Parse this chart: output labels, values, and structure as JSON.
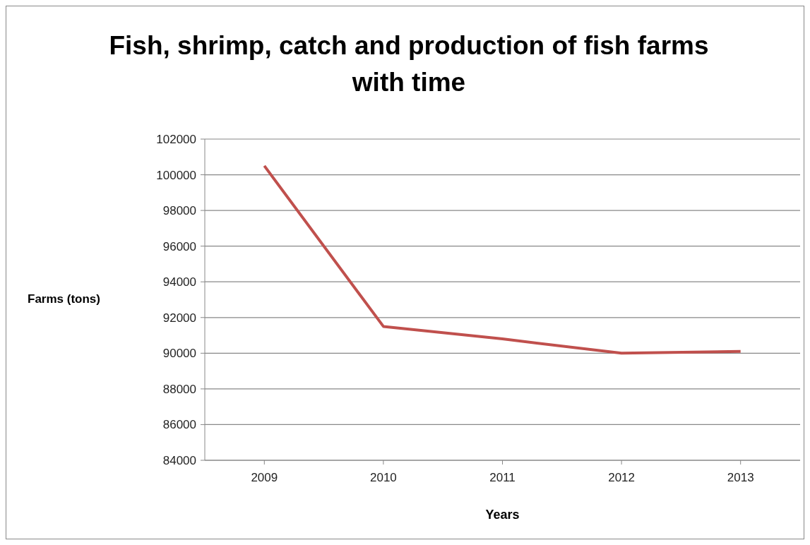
{
  "chart_data": {
    "type": "line",
    "title": "Fish, shrimp, catch and production of fish farms with time",
    "xlabel": "Years",
    "ylabel": "Farms (tons)",
    "categories": [
      "2009",
      "2010",
      "2011",
      "2012",
      "2013"
    ],
    "series": [
      {
        "color": "#c0504d",
        "values": [
          100500,
          91500,
          90800,
          90000,
          90100
        ]
      }
    ],
    "ylim": [
      84000,
      102000
    ],
    "yticks": [
      84000,
      86000,
      88000,
      90000,
      92000,
      94000,
      96000,
      98000,
      100000,
      102000
    ],
    "grid": "y",
    "legend": false,
    "marker": "none",
    "line_style": "solid"
  }
}
